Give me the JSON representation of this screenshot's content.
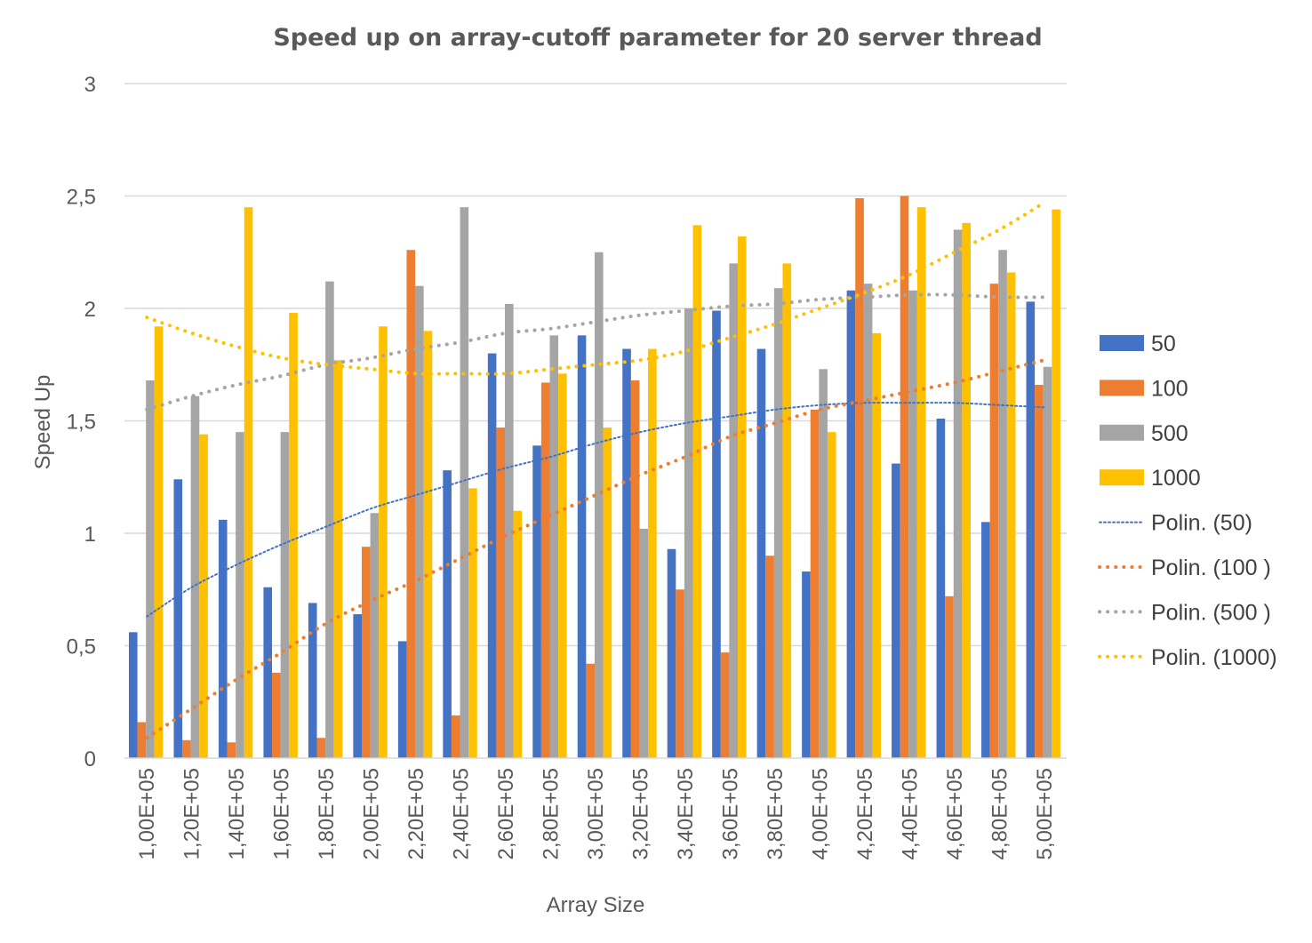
{
  "chart_data": {
    "type": "bar",
    "title": "Speed up on array-cutoff parameter for 20 server thread",
    "xlabel": "Array Size",
    "ylabel": "Speed Up",
    "ylim": [
      0,
      3
    ],
    "yticks": [
      "0",
      "0,5",
      "1",
      "1,5",
      "2",
      "2,5",
      "3"
    ],
    "ytick_values": [
      0,
      0.5,
      1,
      1.5,
      2,
      2.5,
      3
    ],
    "grid": true,
    "legend_position": "right",
    "categories": [
      "1,00E+05",
      "1,20E+05",
      "1,40E+05",
      "1,60E+05",
      "1,80E+05",
      "2,00E+05",
      "2,20E+05",
      "2,40E+05",
      "2,60E+05",
      "2,80E+05",
      "3,00E+05",
      "3,20E+05",
      "3,40E+05",
      "3,60E+05",
      "3,80E+05",
      "4,00E+05",
      "4,20E+05",
      "4,40E+05",
      "4,60E+05",
      "4,80E+05",
      "5,00E+05"
    ],
    "series": [
      {
        "name": "50",
        "color": "#4472C4",
        "values": [
          0.56,
          1.24,
          1.06,
          0.76,
          0.69,
          0.64,
          0.52,
          1.28,
          1.8,
          1.39,
          1.88,
          1.82,
          0.93,
          1.99,
          1.82,
          0.83,
          2.08,
          1.31,
          1.51,
          1.05,
          2.03
        ]
      },
      {
        "name": "100",
        "color": "#ED7D31",
        "values": [
          0.16,
          0.08,
          0.07,
          0.38,
          0.09,
          0.94,
          2.26,
          0.19,
          1.47,
          1.67,
          0.42,
          1.68,
          0.75,
          0.47,
          0.9,
          1.55,
          2.49,
          2.5,
          0.72,
          2.11,
          1.66
        ]
      },
      {
        "name": "500",
        "color": "#A5A5A5",
        "values": [
          1.68,
          1.61,
          1.45,
          1.45,
          2.12,
          1.09,
          2.1,
          2.45,
          2.02,
          1.88,
          2.25,
          1.02,
          2.0,
          2.2,
          2.09,
          1.73,
          2.11,
          2.08,
          2.35,
          2.26,
          1.74
        ]
      },
      {
        "name": "1000",
        "color": "#FFC000",
        "values": [
          1.92,
          1.44,
          2.45,
          1.98,
          1.77,
          1.92,
          1.9,
          1.2,
          1.1,
          1.71,
          1.47,
          1.82,
          2.37,
          2.32,
          2.2,
          1.45,
          1.89,
          2.45,
          2.38,
          2.16,
          2.44
        ]
      }
    ],
    "trendlines": [
      {
        "name": "Polin. (50)",
        "color": "#4472C4",
        "style": "fine",
        "values": [
          0.63,
          0.76,
          0.86,
          0.95,
          1.03,
          1.11,
          1.17,
          1.23,
          1.29,
          1.34,
          1.4,
          1.45,
          1.49,
          1.52,
          1.55,
          1.57,
          1.58,
          1.58,
          1.58,
          1.57,
          1.56
        ]
      },
      {
        "name": "Polin. (100 )",
        "color": "#ED7D31",
        "style": "coarse",
        "values": [
          0.09,
          0.22,
          0.35,
          0.47,
          0.6,
          0.7,
          0.79,
          0.89,
          0.99,
          1.08,
          1.17,
          1.26,
          1.34,
          1.43,
          1.49,
          1.55,
          1.59,
          1.63,
          1.67,
          1.72,
          1.77
        ]
      },
      {
        "name": "Polin. (500 )",
        "color": "#A5A5A5",
        "style": "coarse",
        "values": [
          1.55,
          1.61,
          1.66,
          1.7,
          1.75,
          1.78,
          1.82,
          1.85,
          1.89,
          1.91,
          1.94,
          1.97,
          1.99,
          2.01,
          2.02,
          2.04,
          2.05,
          2.06,
          2.06,
          2.05,
          2.05
        ]
      },
      {
        "name": "Polin. (1000)",
        "color": "#FFC000",
        "style": "coarse",
        "values": [
          1.96,
          1.89,
          1.83,
          1.78,
          1.75,
          1.73,
          1.71,
          1.71,
          1.71,
          1.73,
          1.75,
          1.77,
          1.81,
          1.87,
          1.93,
          2.0,
          2.07,
          2.15,
          2.25,
          2.35,
          2.47
        ]
      }
    ]
  }
}
